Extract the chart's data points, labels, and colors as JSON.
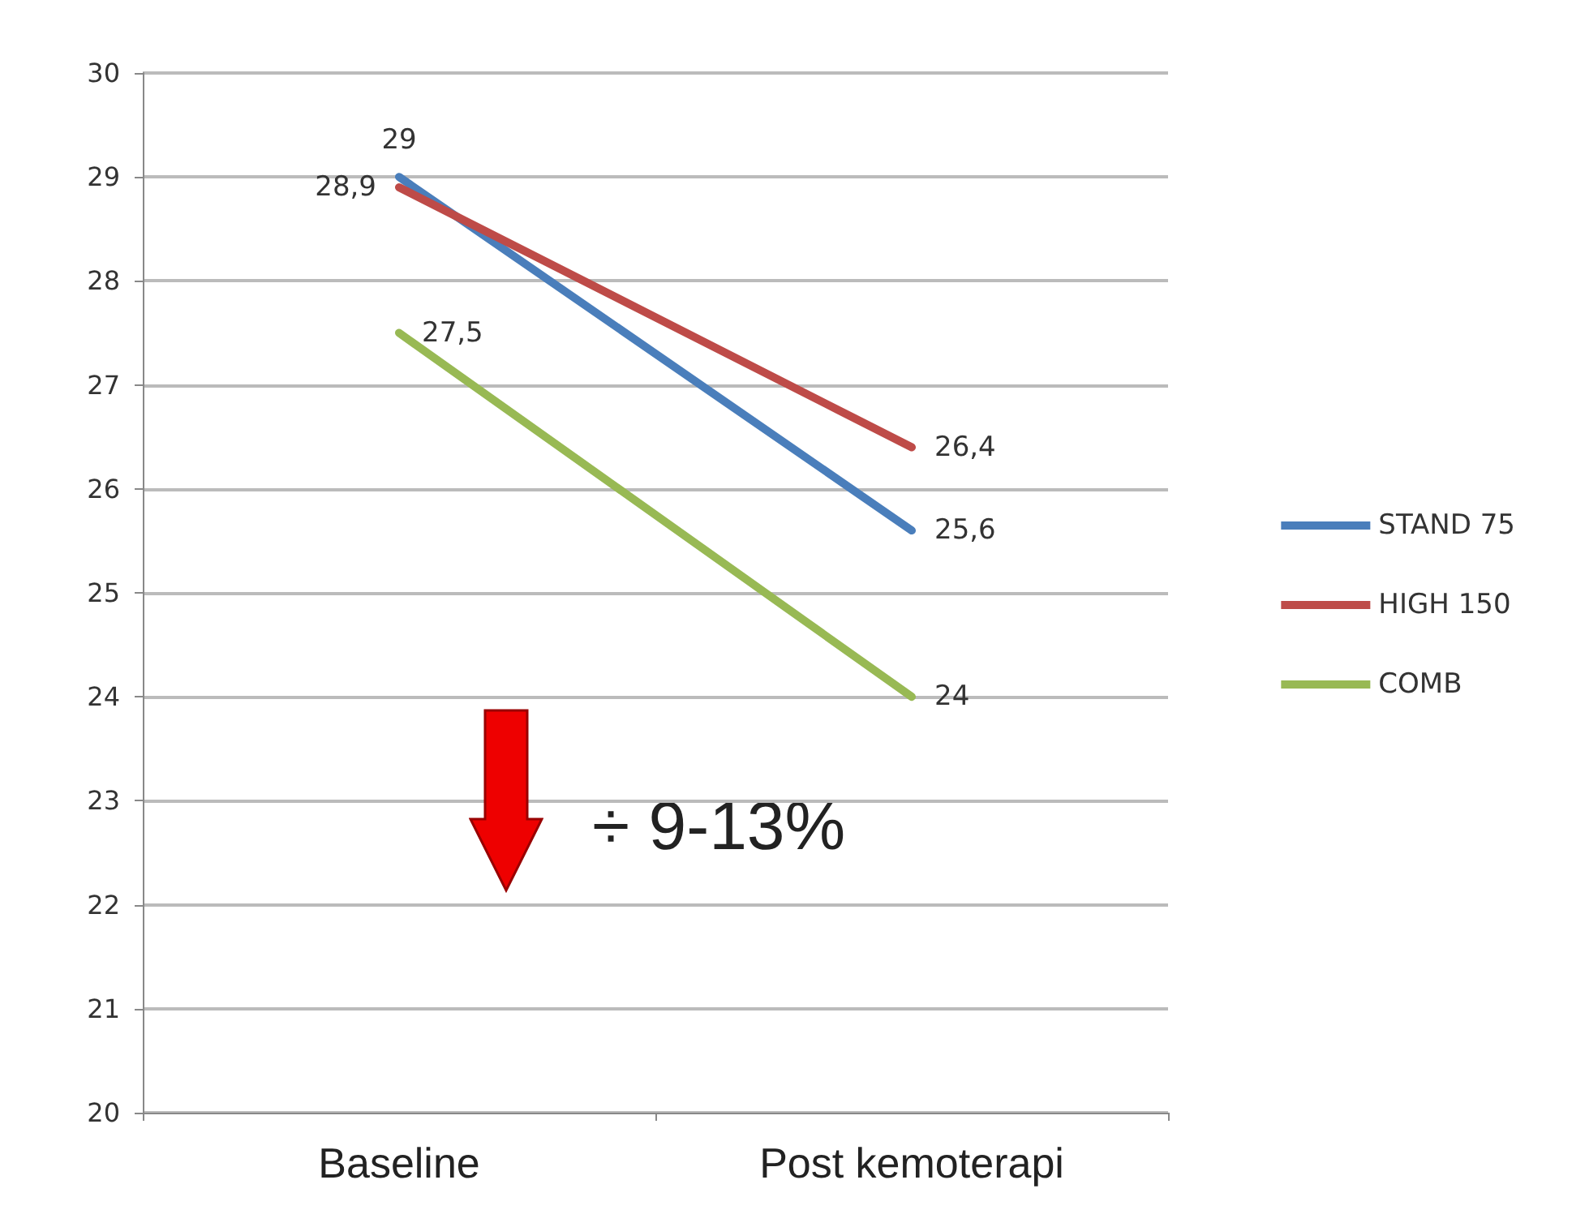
{
  "chart_data": {
    "type": "line",
    "categories": [
      "Baseline",
      "Post kemoterapi"
    ],
    "series": [
      {
        "name": "STAND 75",
        "color": "#4a7ebb",
        "values": [
          29,
          25.6
        ],
        "value_labels": [
          "29",
          "25,6"
        ]
      },
      {
        "name": "HIGH 150",
        "color": "#be4b48",
        "values": [
          28.9,
          26.4
        ],
        "value_labels": [
          "28,9",
          "26,4"
        ]
      },
      {
        "name": "COMB",
        "color": "#98b954",
        "values": [
          27.5,
          24
        ],
        "value_labels": [
          "27,5",
          "24"
        ]
      }
    ],
    "ylim": [
      20,
      30
    ],
    "yticks": [
      20,
      21,
      22,
      23,
      24,
      25,
      26,
      27,
      28,
      29,
      30
    ],
    "grid": "y",
    "legend": "right",
    "marker": "none",
    "line_style": "solid",
    "annotations": [
      "÷ 9-13%"
    ]
  }
}
